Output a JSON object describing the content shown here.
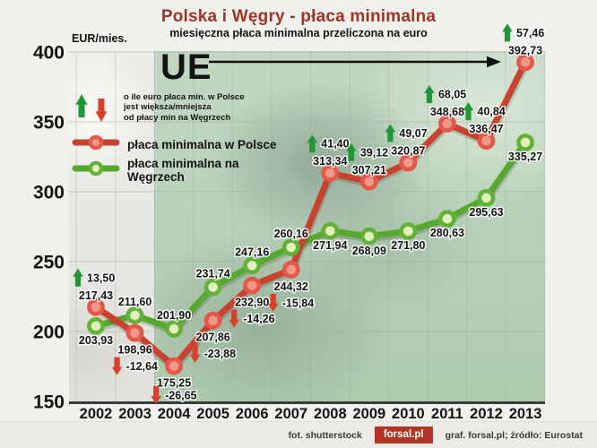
{
  "header": {
    "title": "Polska i Węgry - płaca minimalna",
    "subtitle": "miesięczna płaca minimalna przeliczona na euro"
  },
  "unit_label": "EUR/mies.",
  "arrow_legend": {
    "lines": [
      "o ile euro płaca min. w Polsce",
      "jest większa/mniejsza",
      "od płacy min na Węgrzech"
    ]
  },
  "colors": {
    "title": "#9e3423",
    "increase_arrow": "#1f9638",
    "decrease_arrow": "#d8402c",
    "axis": "#3c3c3c",
    "eu_band": "#b8d2b9",
    "logo_badge": "#b23425"
  },
  "chart_data": {
    "type": "line",
    "title": "Polska i Węgry - płaca minimalna",
    "subtitle": "miesięczna płaca minimalna przeliczona na euro",
    "ylabel": "EUR/mies.",
    "ylim": [
      150,
      400
    ],
    "ytick_step": 50,
    "grid": true,
    "legend_position": "top-left",
    "decimal_separator": ",",
    "x": [
      2002,
      2003,
      2004,
      2005,
      2006,
      2007,
      2008,
      2009,
      2010,
      2011,
      2012,
      2013
    ],
    "series": [
      {
        "name": "płaca minimalna w Polsce",
        "color": "#c8432f",
        "marker_ring": "#e4584a",
        "marker_fill": "#f0978a",
        "values": [
          217.43,
          198.96,
          175.25,
          207.86,
          232.9,
          244.32,
          313.34,
          307.21,
          320.87,
          348.68,
          336.47,
          392.73
        ]
      },
      {
        "name": "płaca minimalna na Węgrzech",
        "color": "#57a82e",
        "marker_ring": "#63b238",
        "marker_fill": "#e3f0bd",
        "values": [
          203.93,
          211.6,
          201.9,
          231.74,
          247.16,
          260.16,
          271.94,
          268.09,
          271.8,
          280.63,
          295.63,
          335.27
        ]
      }
    ],
    "difference_poland_minus_hungary": [
      13.5,
      -12.64,
      -26.65,
      -23.88,
      -14.26,
      -15.84,
      41.4,
      39.12,
      49.07,
      68.05,
      40.84,
      57.46
    ],
    "eu_annotation": {
      "label": "UE",
      "band_starts_between": [
        2003,
        2004
      ]
    }
  },
  "footer": {
    "photo_credit": "fot. shutterstock",
    "logo_text": "forsal.pl",
    "credits": "graf. forsal.pl;  źródło: Eurostat"
  }
}
